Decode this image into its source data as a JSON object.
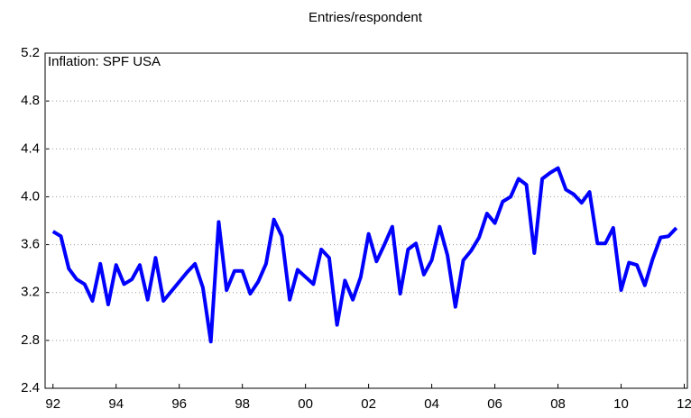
{
  "chart_data": {
    "type": "line",
    "title": "Entries/respondent",
    "annotation": "Inflation: SPF USA",
    "x": [
      1992,
      1992.25,
      1992.5,
      1992.75,
      1993,
      1993.25,
      1993.5,
      1993.75,
      1994,
      1994.25,
      1994.5,
      1994.75,
      1995,
      1995.25,
      1995.5,
      1995.75,
      1996,
      1996.25,
      1996.5,
      1996.75,
      1997,
      1997.25,
      1997.5,
      1997.75,
      1998,
      1998.25,
      1998.5,
      1998.75,
      1999,
      1999.25,
      1999.5,
      1999.75,
      2000,
      2000.25,
      2000.5,
      2000.75,
      2001,
      2001.25,
      2001.5,
      2001.75,
      2002,
      2002.25,
      2002.5,
      2002.75,
      2003,
      2003.25,
      2003.5,
      2003.75,
      2004,
      2004.25,
      2004.5,
      2004.75,
      2005,
      2005.25,
      2005.5,
      2005.75,
      2006,
      2006.25,
      2006.5,
      2006.75,
      2007,
      2007.25,
      2007.5,
      2007.75,
      2008,
      2008.25,
      2008.5,
      2008.75,
      2009,
      2009.25,
      2009.5,
      2009.75,
      2010,
      2010.25,
      2010.5,
      2010.75,
      2011,
      2011.25,
      2011.5,
      2011.75
    ],
    "series": [
      {
        "name": "Inflation: SPF USA",
        "color": "#0000ff",
        "values": [
          3.71,
          3.67,
          3.4,
          3.31,
          3.27,
          3.13,
          3.44,
          3.1,
          3.43,
          3.27,
          3.31,
          3.43,
          3.14,
          3.49,
          3.13,
          3.21,
          3.29,
          3.37,
          3.44,
          3.24,
          2.79,
          3.79,
          3.22,
          3.38,
          3.38,
          3.19,
          3.29,
          3.44,
          3.81,
          3.67,
          3.14,
          3.39,
          3.33,
          3.27,
          3.56,
          3.49,
          2.93,
          3.3,
          3.14,
          3.33,
          3.69,
          3.46,
          3.6,
          3.75,
          3.19,
          3.56,
          3.61,
          3.35,
          3.47,
          3.75,
          3.51,
          3.08,
          3.47,
          3.55,
          3.66,
          3.86,
          3.78,
          3.96,
          4.0,
          4.15,
          4.1,
          3.53,
          4.15,
          4.2,
          4.24,
          4.06,
          4.02,
          3.95,
          4.04,
          3.61,
          3.61,
          3.74,
          3.22,
          3.45,
          3.43,
          3.26,
          3.48,
          3.66,
          3.67,
          3.74
        ]
      }
    ],
    "xlim": [
      1991.75,
      2012.1
    ],
    "xticks": [
      {
        "value": 1992,
        "label": "92"
      },
      {
        "value": 1994,
        "label": "94"
      },
      {
        "value": 1996,
        "label": "96"
      },
      {
        "value": 1998,
        "label": "98"
      },
      {
        "value": 2000,
        "label": "00"
      },
      {
        "value": 2002,
        "label": "02"
      },
      {
        "value": 2004,
        "label": "04"
      },
      {
        "value": 2006,
        "label": "06"
      },
      {
        "value": 2008,
        "label": "08"
      },
      {
        "value": 2010,
        "label": "10"
      },
      {
        "value": 2012,
        "label": "12"
      }
    ],
    "ylim": [
      2.4,
      5.2
    ],
    "yticks": [
      2.4,
      2.8,
      3.2,
      3.6,
      {
        "value": 4,
        "label": "4.0"
      },
      4.4,
      4.8,
      5.2
    ],
    "grid": true
  }
}
